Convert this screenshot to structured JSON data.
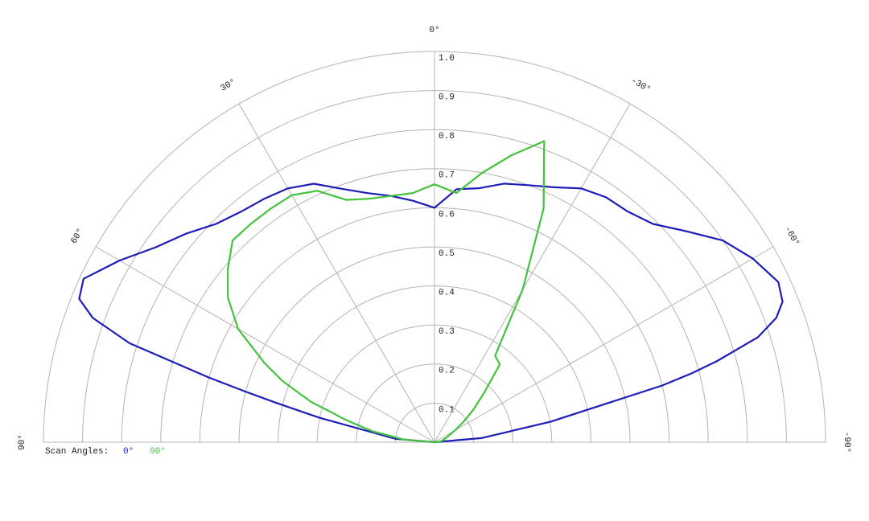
{
  "chart_data": {
    "type": "polar",
    "theta": [
      90,
      85,
      80,
      78,
      76,
      75,
      74,
      72,
      70,
      68,
      65,
      60,
      55,
      50,
      45,
      40,
      35,
      30,
      25,
      20,
      15,
      10,
      5,
      0,
      -5,
      -10,
      -15,
      -20,
      -25,
      -30,
      -35,
      -40,
      -45,
      -50,
      -55,
      -60,
      -65,
      -68,
      -70,
      -72,
      -74,
      -75,
      -76,
      -78,
      -80,
      -85,
      -90
    ],
    "series": [
      {
        "name": "0°",
        "color": "#1c1cb8",
        "values": [
          0,
          0.1,
          0.19,
          0.3,
          0.42,
          0.5,
          0.6,
          0.82,
          0.93,
          0.98,
          0.99,
          0.93,
          0.87,
          0.83,
          0.79,
          0.77,
          0.76,
          0.75,
          0.73,
          0.69,
          0.66,
          0.64,
          0.62,
          0.6,
          0.65,
          0.66,
          0.685,
          0.7,
          0.72,
          0.75,
          0.765,
          0.77,
          0.79,
          0.84,
          0.9,
          0.94,
          0.97,
          0.96,
          0.93,
          0.87,
          0.75,
          0.68,
          0.6,
          0.4,
          0.3,
          0.12,
          0
        ]
      },
      {
        "name": "90°",
        "color": "#44c23c",
        "values": [
          0,
          0.08,
          0.16,
          0.19,
          0.23,
          0.25,
          0.27,
          0.33,
          0.37,
          0.42,
          0.48,
          0.58,
          0.645,
          0.69,
          0.73,
          0.73,
          0.73,
          0.73,
          0.71,
          0.66,
          0.645,
          0.64,
          0.64,
          0.66,
          0.64,
          0.7,
          0.76,
          0.82,
          0.66,
          0.45,
          0.27,
          0.26,
          0.18,
          0.13,
          0.09,
          0.06,
          0.04,
          0.035,
          0.03,
          0.025,
          0.025,
          0.025,
          0.025,
          0.02,
          0.02,
          0.01,
          0
        ]
      }
    ],
    "rlim": [
      0,
      1
    ],
    "rticks": [
      0.1,
      0.2,
      0.3,
      0.4,
      0.5,
      0.6,
      0.7,
      0.8,
      0.9,
      {
        "value": 1,
        "label": "1.0"
      }
    ],
    "thetalim": [
      -90,
      90
    ],
    "thetaticks": [
      {
        "value": 90,
        "label": "90°"
      },
      {
        "value": 60,
        "label": "60°"
      },
      {
        "value": 30,
        "label": "30°"
      },
      {
        "value": 0,
        "label": "0°"
      },
      {
        "value": -30,
        "label": "-30°"
      },
      {
        "value": -60,
        "label": "-60°"
      },
      {
        "value": -90,
        "label": "-90°"
      }
    ],
    "legend_title": "Scan Angles:",
    "legend": "bottom-left",
    "grid": true
  }
}
